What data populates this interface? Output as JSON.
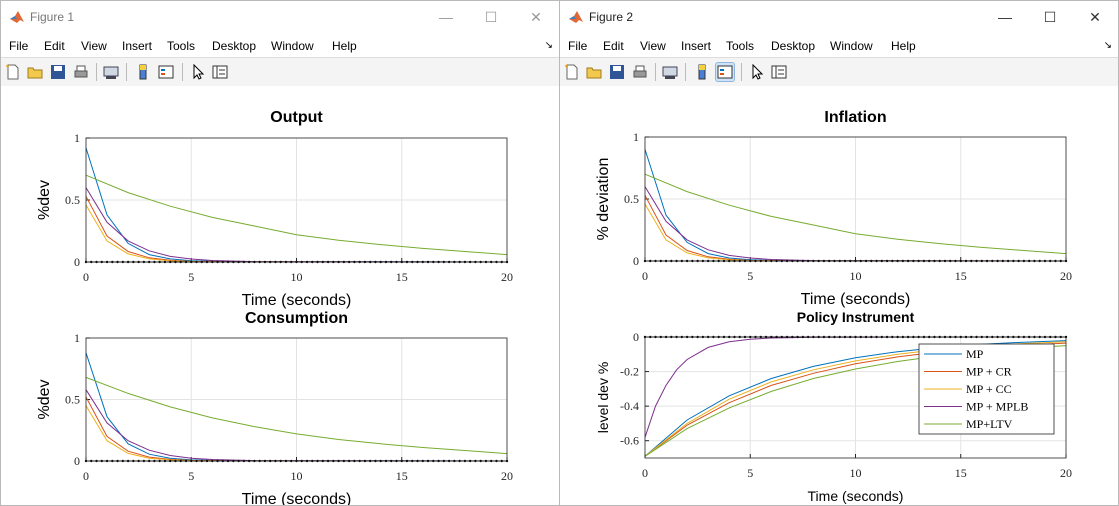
{
  "windows": [
    {
      "id": "fig1",
      "title": "Figure 1",
      "active": false,
      "menu": [
        "File",
        "Edit",
        "View",
        "Insert",
        "Tools",
        "Desktop",
        "Window",
        "Help"
      ],
      "menu_arrow": "↘"
    },
    {
      "id": "fig2",
      "title": "Figure 2",
      "active": true,
      "menu": [
        "File",
        "Edit",
        "View",
        "Insert",
        "Tools",
        "Desktop",
        "Window",
        "Help"
      ],
      "menu_arrow": "↘"
    }
  ],
  "toolbar_icons": [
    "new-figure-icon",
    "open-icon",
    "save-icon",
    "print-icon",
    "print-preview-icon",
    "colorbar-icon",
    "legend-icon",
    "pointer-icon",
    "property-inspector-icon"
  ],
  "colors": {
    "MP": "#0072bd",
    "MP + CR": "#d95319",
    "MP + CC": "#edb120",
    "MP + MPLB": "#7e2f8e",
    "MP+LTV": "#77ac30",
    "zero": "#000000"
  },
  "chart_data": [
    {
      "window": "fig1",
      "type": "line",
      "title": "Output",
      "xlabel": "Time (seconds)",
      "ylabel": "%dev",
      "xlim": [
        0,
        20
      ],
      "ylim": [
        0,
        1
      ],
      "xticks": [
        "0",
        "5",
        "10",
        "15",
        "20"
      ],
      "yticks": [
        "0",
        "0.5",
        "1"
      ],
      "grid": true,
      "series": [
        {
          "key": "MP",
          "values": [
            {
              "x": 0,
              "y": 0.92
            },
            {
              "x": 1,
              "y": 0.38
            },
            {
              "x": 2,
              "y": 0.15
            },
            {
              "x": 3,
              "y": 0.06
            },
            {
              "x": 4,
              "y": 0.025
            },
            {
              "x": 5,
              "y": 0.01
            },
            {
              "x": 7,
              "y": 0.002
            },
            {
              "x": 20,
              "y": 0
            }
          ]
        },
        {
          "key": "MP + CR",
          "values": [
            {
              "x": 0,
              "y": 0.53
            },
            {
              "x": 1,
              "y": 0.21
            },
            {
              "x": 2,
              "y": 0.085
            },
            {
              "x": 3,
              "y": 0.034
            },
            {
              "x": 4,
              "y": 0.014
            },
            {
              "x": 5,
              "y": 0.005
            },
            {
              "x": 7,
              "y": 0.001
            },
            {
              "x": 20,
              "y": 0
            }
          ]
        },
        {
          "key": "MP + CC",
          "values": [
            {
              "x": 0,
              "y": 0.46
            },
            {
              "x": 1,
              "y": 0.17
            },
            {
              "x": 2,
              "y": 0.065
            },
            {
              "x": 3,
              "y": 0.025
            },
            {
              "x": 4,
              "y": 0.009
            },
            {
              "x": 5,
              "y": 0.003
            },
            {
              "x": 7,
              "y": 0.001
            },
            {
              "x": 20,
              "y": 0
            }
          ]
        },
        {
          "key": "MP + MPLB",
          "values": [
            {
              "x": 0,
              "y": 0.6
            },
            {
              "x": 1,
              "y": 0.32
            },
            {
              "x": 2,
              "y": 0.17
            },
            {
              "x": 3,
              "y": 0.09
            },
            {
              "x": 4,
              "y": 0.045
            },
            {
              "x": 5,
              "y": 0.024
            },
            {
              "x": 6,
              "y": 0.012
            },
            {
              "x": 8,
              "y": 0.003
            },
            {
              "x": 20,
              "y": 0
            }
          ]
        },
        {
          "key": "MP+LTV",
          "values": [
            {
              "x": 0,
              "y": 0.7
            },
            {
              "x": 2,
              "y": 0.56
            },
            {
              "x": 4,
              "y": 0.45
            },
            {
              "x": 6,
              "y": 0.36
            },
            {
              "x": 8,
              "y": 0.29
            },
            {
              "x": 10,
              "y": 0.22
            },
            {
              "x": 12,
              "y": 0.175
            },
            {
              "x": 14,
              "y": 0.14
            },
            {
              "x": 16,
              "y": 0.11
            },
            {
              "x": 18,
              "y": 0.085
            },
            {
              "x": 20,
              "y": 0.06
            }
          ]
        }
      ],
      "zero_markers": true
    },
    {
      "window": "fig1",
      "type": "line",
      "title": "Consumption",
      "xlabel": "Time (seconds)",
      "ylabel": "%dev",
      "xlim": [
        0,
        20
      ],
      "ylim": [
        0,
        1
      ],
      "xticks": [
        "0",
        "5",
        "10",
        "15",
        "20"
      ],
      "yticks": [
        "0",
        "0.5",
        "1"
      ],
      "grid": true,
      "series": [
        {
          "key": "MP",
          "values": [
            {
              "x": 0,
              "y": 0.88
            },
            {
              "x": 1,
              "y": 0.36
            },
            {
              "x": 2,
              "y": 0.14
            },
            {
              "x": 3,
              "y": 0.055
            },
            {
              "x": 4,
              "y": 0.022
            },
            {
              "x": 5,
              "y": 0.009
            },
            {
              "x": 7,
              "y": 0.002
            },
            {
              "x": 20,
              "y": 0
            }
          ]
        },
        {
          "key": "MP + CR",
          "values": [
            {
              "x": 0,
              "y": 0.52
            },
            {
              "x": 1,
              "y": 0.2
            },
            {
              "x": 2,
              "y": 0.08
            },
            {
              "x": 3,
              "y": 0.032
            },
            {
              "x": 4,
              "y": 0.013
            },
            {
              "x": 5,
              "y": 0.005
            },
            {
              "x": 7,
              "y": 0.001
            },
            {
              "x": 20,
              "y": 0
            }
          ]
        },
        {
          "key": "MP + CC",
          "values": [
            {
              "x": 0,
              "y": 0.45
            },
            {
              "x": 1,
              "y": 0.165
            },
            {
              "x": 2,
              "y": 0.062
            },
            {
              "x": 3,
              "y": 0.023
            },
            {
              "x": 4,
              "y": 0.009
            },
            {
              "x": 5,
              "y": 0.003
            },
            {
              "x": 7,
              "y": 0.001
            },
            {
              "x": 20,
              "y": 0
            }
          ]
        },
        {
          "key": "MP + MPLB",
          "values": [
            {
              "x": 0,
              "y": 0.58
            },
            {
              "x": 1,
              "y": 0.31
            },
            {
              "x": 2,
              "y": 0.165
            },
            {
              "x": 3,
              "y": 0.088
            },
            {
              "x": 4,
              "y": 0.045
            },
            {
              "x": 5,
              "y": 0.023
            },
            {
              "x": 6,
              "y": 0.012
            },
            {
              "x": 8,
              "y": 0.003
            },
            {
              "x": 20,
              "y": 0
            }
          ]
        },
        {
          "key": "MP+LTV",
          "values": [
            {
              "x": 0,
              "y": 0.68
            },
            {
              "x": 2,
              "y": 0.55
            },
            {
              "x": 4,
              "y": 0.44
            },
            {
              "x": 6,
              "y": 0.35
            },
            {
              "x": 8,
              "y": 0.28
            },
            {
              "x": 10,
              "y": 0.22
            },
            {
              "x": 12,
              "y": 0.175
            },
            {
              "x": 14,
              "y": 0.14
            },
            {
              "x": 16,
              "y": 0.11
            },
            {
              "x": 18,
              "y": 0.085
            },
            {
              "x": 20,
              "y": 0.06
            }
          ]
        }
      ],
      "zero_markers": true
    },
    {
      "window": "fig2",
      "type": "line",
      "title": "Inflation",
      "xlabel": "Time (seconds)",
      "ylabel": "% deviation",
      "xlim": [
        0,
        20
      ],
      "ylim": [
        0,
        1
      ],
      "xticks": [
        "0",
        "5",
        "10",
        "15",
        "20"
      ],
      "yticks": [
        "0",
        "0.5",
        "1"
      ],
      "grid": true,
      "series": [
        {
          "key": "MP",
          "values": [
            {
              "x": 0,
              "y": 0.9
            },
            {
              "x": 1,
              "y": 0.37
            },
            {
              "x": 2,
              "y": 0.15
            },
            {
              "x": 3,
              "y": 0.06
            },
            {
              "x": 4,
              "y": 0.024
            },
            {
              "x": 5,
              "y": 0.01
            },
            {
              "x": 7,
              "y": 0.002
            },
            {
              "x": 20,
              "y": 0
            }
          ]
        },
        {
          "key": "MP + CR",
          "values": [
            {
              "x": 0,
              "y": 0.53
            },
            {
              "x": 1,
              "y": 0.21
            },
            {
              "x": 2,
              "y": 0.085
            },
            {
              "x": 3,
              "y": 0.034
            },
            {
              "x": 4,
              "y": 0.014
            },
            {
              "x": 5,
              "y": 0.005
            },
            {
              "x": 7,
              "y": 0.001
            },
            {
              "x": 20,
              "y": 0
            }
          ]
        },
        {
          "key": "MP + CC",
          "values": [
            {
              "x": 0,
              "y": 0.46
            },
            {
              "x": 1,
              "y": 0.17
            },
            {
              "x": 2,
              "y": 0.065
            },
            {
              "x": 3,
              "y": 0.025
            },
            {
              "x": 4,
              "y": 0.009
            },
            {
              "x": 5,
              "y": 0.003
            },
            {
              "x": 7,
              "y": 0.001
            },
            {
              "x": 20,
              "y": 0
            }
          ]
        },
        {
          "key": "MP + MPLB",
          "values": [
            {
              "x": 0,
              "y": 0.6
            },
            {
              "x": 1,
              "y": 0.32
            },
            {
              "x": 2,
              "y": 0.17
            },
            {
              "x": 3,
              "y": 0.09
            },
            {
              "x": 4,
              "y": 0.045
            },
            {
              "x": 5,
              "y": 0.024
            },
            {
              "x": 6,
              "y": 0.012
            },
            {
              "x": 8,
              "y": 0.003
            },
            {
              "x": 20,
              "y": 0
            }
          ]
        },
        {
          "key": "MP+LTV",
          "values": [
            {
              "x": 0,
              "y": 0.7
            },
            {
              "x": 2,
              "y": 0.56
            },
            {
              "x": 4,
              "y": 0.45
            },
            {
              "x": 6,
              "y": 0.36
            },
            {
              "x": 8,
              "y": 0.29
            },
            {
              "x": 10,
              "y": 0.22
            },
            {
              "x": 12,
              "y": 0.175
            },
            {
              "x": 14,
              "y": 0.14
            },
            {
              "x": 16,
              "y": 0.11
            },
            {
              "x": 18,
              "y": 0.085
            },
            {
              "x": 20,
              "y": 0.06
            }
          ]
        }
      ],
      "zero_markers": true
    },
    {
      "window": "fig2",
      "type": "line",
      "title": "Policy Instrument",
      "xlabel": "Time (seconds)",
      "ylabel": "level dev %",
      "xlim": [
        0,
        20
      ],
      "ylim": [
        -0.7,
        0
      ],
      "xticks": [
        "0",
        "5",
        "10",
        "15",
        "20"
      ],
      "yticks": [
        "0",
        "-0.2",
        "-0.4",
        "-0.6"
      ],
      "ytick_values": [
        0,
        -0.2,
        -0.4,
        -0.6
      ],
      "grid": true,
      "legend": {
        "position": "bottom-right",
        "entries": [
          "MP",
          "MP + CR",
          "MP + CC",
          "MP + MPLB",
          "MP+LTV"
        ]
      },
      "series": [
        {
          "key": "MP",
          "values": [
            {
              "x": 0,
              "y": -0.69
            },
            {
              "x": 2,
              "y": -0.48
            },
            {
              "x": 4,
              "y": -0.34
            },
            {
              "x": 6,
              "y": -0.24
            },
            {
              "x": 8,
              "y": -0.17
            },
            {
              "x": 10,
              "y": -0.12
            },
            {
              "x": 12,
              "y": -0.085
            },
            {
              "x": 14,
              "y": -0.06
            },
            {
              "x": 16,
              "y": -0.042
            },
            {
              "x": 18,
              "y": -0.03
            },
            {
              "x": 20,
              "y": -0.021
            }
          ]
        },
        {
          "key": "MP + CR",
          "values": [
            {
              "x": 0,
              "y": -0.69
            },
            {
              "x": 2,
              "y": -0.51
            },
            {
              "x": 4,
              "y": -0.38
            },
            {
              "x": 6,
              "y": -0.28
            },
            {
              "x": 8,
              "y": -0.21
            },
            {
              "x": 10,
              "y": -0.155
            },
            {
              "x": 12,
              "y": -0.115
            },
            {
              "x": 14,
              "y": -0.085
            },
            {
              "x": 16,
              "y": -0.063
            },
            {
              "x": 18,
              "y": -0.047
            },
            {
              "x": 20,
              "y": -0.035
            }
          ]
        },
        {
          "key": "MP + CC",
          "values": [
            {
              "x": 0,
              "y": -0.69
            },
            {
              "x": 2,
              "y": -0.5
            },
            {
              "x": 4,
              "y": -0.36
            },
            {
              "x": 6,
              "y": -0.26
            },
            {
              "x": 8,
              "y": -0.19
            },
            {
              "x": 10,
              "y": -0.138
            },
            {
              "x": 12,
              "y": -0.1
            },
            {
              "x": 14,
              "y": -0.072
            },
            {
              "x": 16,
              "y": -0.052
            },
            {
              "x": 18,
              "y": -0.038
            },
            {
              "x": 20,
              "y": -0.028
            }
          ]
        },
        {
          "key": "MP + MPLB",
          "values": [
            {
              "x": 0,
              "y": -0.58
            },
            {
              "x": 0.5,
              "y": -0.4
            },
            {
              "x": 1,
              "y": -0.28
            },
            {
              "x": 1.5,
              "y": -0.19
            },
            {
              "x": 2,
              "y": -0.13
            },
            {
              "x": 3,
              "y": -0.06
            },
            {
              "x": 4,
              "y": -0.028
            },
            {
              "x": 5,
              "y": -0.013
            },
            {
              "x": 6,
              "y": -0.006
            },
            {
              "x": 8,
              "y": -0.001
            },
            {
              "x": 20,
              "y": 0
            }
          ]
        },
        {
          "key": "MP+LTV",
          "values": [
            {
              "x": 0,
              "y": -0.69
            },
            {
              "x": 2,
              "y": -0.53
            },
            {
              "x": 4,
              "y": -0.41
            },
            {
              "x": 6,
              "y": -0.315
            },
            {
              "x": 8,
              "y": -0.24
            },
            {
              "x": 10,
              "y": -0.185
            },
            {
              "x": 12,
              "y": -0.142
            },
            {
              "x": 14,
              "y": -0.109
            },
            {
              "x": 16,
              "y": -0.084
            },
            {
              "x": 18,
              "y": -0.065
            },
            {
              "x": 20,
              "y": -0.05
            }
          ]
        }
      ],
      "zero_markers": true
    }
  ]
}
